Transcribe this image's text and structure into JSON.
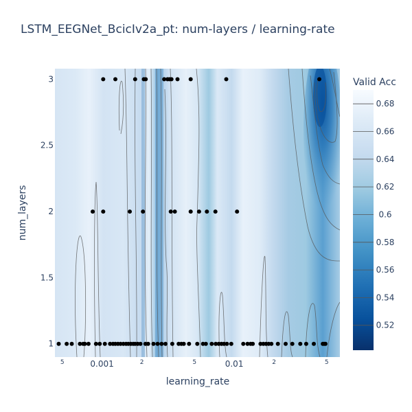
{
  "chart_data": {
    "type": "contour",
    "title": "LSTM_EEGNet_BcicIv2a_pt: num-layers / learning-rate",
    "xlabel": "learning_rate",
    "ylabel": "num_layers",
    "x_scale": "log",
    "xlim": [
      0.00044,
      0.063
    ],
    "ylim": [
      0.9,
      3.08
    ],
    "x_ticks": [
      {
        "value": 0.0005,
        "label": "5",
        "minor": true
      },
      {
        "value": 0.001,
        "label": "0.001",
        "minor": false
      },
      {
        "value": 0.002,
        "label": "2",
        "minor": true
      },
      {
        "value": 0.005,
        "label": "5",
        "minor": true
      },
      {
        "value": 0.01,
        "label": "0.01",
        "minor": false
      },
      {
        "value": 0.02,
        "label": "2",
        "minor": true
      },
      {
        "value": 0.05,
        "label": "5",
        "minor": true
      }
    ],
    "y_ticks": [
      {
        "value": 1,
        "label": "1"
      },
      {
        "value": 1.5,
        "label": "1.5"
      },
      {
        "value": 2,
        "label": "2"
      },
      {
        "value": 2.5,
        "label": "2.5"
      },
      {
        "value": 3,
        "label": "3"
      }
    ],
    "colorbar": {
      "title": "Valid Acc",
      "min": 0.502,
      "max": 0.69,
      "ticks": [
        "0.52",
        "0.54",
        "0.56",
        "0.58",
        "0.6",
        "0.62",
        "0.64",
        "0.66",
        "0.68"
      ],
      "tick_values": [
        0.52,
        0.54,
        0.56,
        0.58,
        0.6,
        0.62,
        0.64,
        0.66,
        0.68
      ],
      "colorscale": [
        "#08306b",
        "#08519c",
        "#2171b5",
        "#4292c6",
        "#6baed6",
        "#9ecae1",
        "#c6dbef",
        "#deebf7",
        "#f7fbff"
      ]
    },
    "points": [
      {
        "x": 0.00102,
        "y": 3
      },
      {
        "x": 0.00126,
        "y": 3
      },
      {
        "x": 0.00178,
        "y": 3
      },
      {
        "x": 0.00207,
        "y": 3
      },
      {
        "x": 0.00214,
        "y": 3
      },
      {
        "x": 0.00295,
        "y": 3
      },
      {
        "x": 0.00313,
        "y": 3
      },
      {
        "x": 0.00324,
        "y": 3
      },
      {
        "x": 0.00335,
        "y": 3
      },
      {
        "x": 0.00372,
        "y": 3
      },
      {
        "x": 0.00468,
        "y": 3
      },
      {
        "x": 0.0087,
        "y": 3
      },
      {
        "x": 0.044,
        "y": 3
      },
      {
        "x": 0.00085,
        "y": 2
      },
      {
        "x": 0.00102,
        "y": 2
      },
      {
        "x": 0.00162,
        "y": 2
      },
      {
        "x": 0.00204,
        "y": 2
      },
      {
        "x": 0.00331,
        "y": 2
      },
      {
        "x": 0.00355,
        "y": 2
      },
      {
        "x": 0.00468,
        "y": 2
      },
      {
        "x": 0.00542,
        "y": 2
      },
      {
        "x": 0.00621,
        "y": 2
      },
      {
        "x": 0.0072,
        "y": 2
      },
      {
        "x": 0.0105,
        "y": 2
      },
      {
        "x": 0.00047,
        "y": 1
      },
      {
        "x": 0.00054,
        "y": 1
      },
      {
        "x": 0.00059,
        "y": 1
      },
      {
        "x": 0.00068,
        "y": 1
      },
      {
        "x": 0.00072,
        "y": 1
      },
      {
        "x": 0.00074,
        "y": 1
      },
      {
        "x": 0.00079,
        "y": 1
      },
      {
        "x": 0.0009,
        "y": 1
      },
      {
        "x": 0.00096,
        "y": 1
      },
      {
        "x": 0.00105,
        "y": 1
      },
      {
        "x": 0.00115,
        "y": 1
      },
      {
        "x": 0.00121,
        "y": 1
      },
      {
        "x": 0.00126,
        "y": 1
      },
      {
        "x": 0.00132,
        "y": 1
      },
      {
        "x": 0.00138,
        "y": 1
      },
      {
        "x": 0.00145,
        "y": 1
      },
      {
        "x": 0.00152,
        "y": 1
      },
      {
        "x": 0.00158,
        "y": 1
      },
      {
        "x": 0.00165,
        "y": 1
      },
      {
        "x": 0.00172,
        "y": 1
      },
      {
        "x": 0.00178,
        "y": 1
      },
      {
        "x": 0.00186,
        "y": 1
      },
      {
        "x": 0.00195,
        "y": 1
      },
      {
        "x": 0.00213,
        "y": 1
      },
      {
        "x": 0.00223,
        "y": 1
      },
      {
        "x": 0.00245,
        "y": 1
      },
      {
        "x": 0.00263,
        "y": 1
      },
      {
        "x": 0.00282,
        "y": 1
      },
      {
        "x": 0.00302,
        "y": 1
      },
      {
        "x": 0.0034,
        "y": 1
      },
      {
        "x": 0.0038,
        "y": 1
      },
      {
        "x": 0.00398,
        "y": 1
      },
      {
        "x": 0.00415,
        "y": 1
      },
      {
        "x": 0.00455,
        "y": 1
      },
      {
        "x": 0.00525,
        "y": 1
      },
      {
        "x": 0.0058,
        "y": 1
      },
      {
        "x": 0.0061,
        "y": 1
      },
      {
        "x": 0.00675,
        "y": 1
      },
      {
        "x": 0.00725,
        "y": 1
      },
      {
        "x": 0.00765,
        "y": 1
      },
      {
        "x": 0.008,
        "y": 1
      },
      {
        "x": 0.00835,
        "y": 1
      },
      {
        "x": 0.0088,
        "y": 1
      },
      {
        "x": 0.0095,
        "y": 1
      },
      {
        "x": 0.0117,
        "y": 1
      },
      {
        "x": 0.0126,
        "y": 1
      },
      {
        "x": 0.0133,
        "y": 1
      },
      {
        "x": 0.0138,
        "y": 1
      },
      {
        "x": 0.0158,
        "y": 1
      },
      {
        "x": 0.0166,
        "y": 1
      },
      {
        "x": 0.0174,
        "y": 1
      },
      {
        "x": 0.0182,
        "y": 1
      },
      {
        "x": 0.0191,
        "y": 1
      },
      {
        "x": 0.0214,
        "y": 1
      },
      {
        "x": 0.0245,
        "y": 1
      },
      {
        "x": 0.0275,
        "y": 1
      },
      {
        "x": 0.0316,
        "y": 1
      },
      {
        "x": 0.035,
        "y": 1
      },
      {
        "x": 0.04,
        "y": 1
      },
      {
        "x": 0.0468,
        "y": 1
      },
      {
        "x": 0.0479,
        "y": 1
      },
      {
        "x": 0.049,
        "y": 1
      }
    ]
  }
}
